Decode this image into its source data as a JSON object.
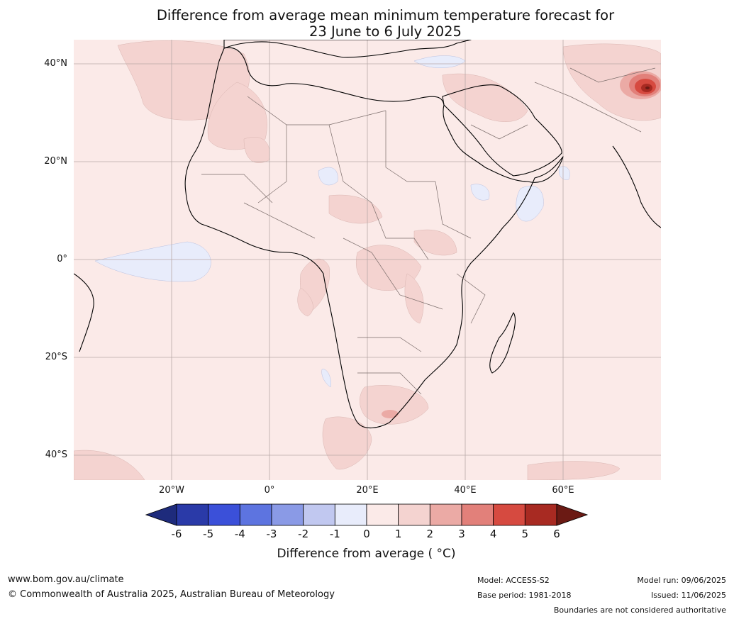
{
  "title": {
    "line1": "Difference from average mean minimum temperature forecast for",
    "line2": "23 June to 6 July 2025"
  },
  "map": {
    "region": "Africa, Middle East and Arabian Peninsula",
    "lat_labels": [
      "40°N",
      "20°N",
      "0°",
      "20°S",
      "40°S"
    ],
    "lon_labels": [
      "20°W",
      "0°",
      "20°E",
      "40°E",
      "60°E"
    ]
  },
  "colorbar": {
    "ticks": [
      "-6",
      "-5",
      "-4",
      "-3",
      "-2",
      "-1",
      "0",
      "1",
      "2",
      "3",
      "4",
      "5",
      "6"
    ],
    "colors": [
      "#2a3aa8",
      "#3b50d9",
      "#5d74e0",
      "#8a9ae6",
      "#c1c8f0",
      "#e8ecfb",
      "#fbeae8",
      "#f4d3d0",
      "#ebaaa5",
      "#e2807a",
      "#d64a40",
      "#a82a22"
    ],
    "extend_low_color": "#1e2b7c",
    "extend_high_color": "#6b1a14",
    "label": "Difference from average ( °C)"
  },
  "footer": {
    "url": "www.bom.gov.au/climate",
    "copyright": "© Commonwealth of Australia 2025, Australian Bureau of Meteorology",
    "model": "Model: ACCESS-S2",
    "base_period": "Base period: 1981-2018",
    "model_run": "Model run: 09/06/2025",
    "issued": "Issued: 11/06/2025",
    "disclaimer": "Boundaries are not considered authoritative"
  }
}
